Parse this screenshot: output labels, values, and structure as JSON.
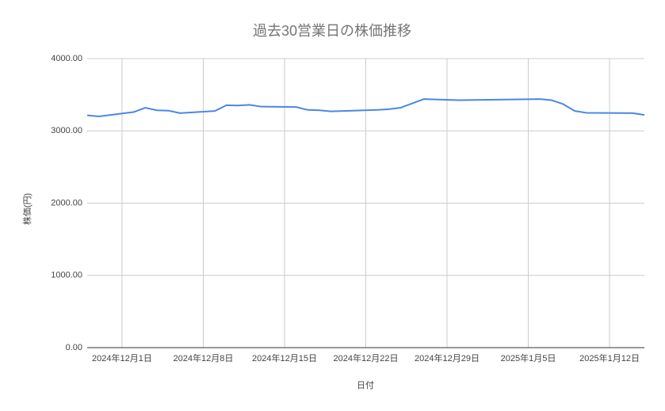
{
  "chart_data": {
    "type": "line",
    "title": "過去30営業日の株価推移",
    "x_label": "日付",
    "y_label": "株価(円)",
    "x": [
      "2024-11-28",
      "2024-11-29",
      "2024-12-02",
      "2024-12-03",
      "2024-12-04",
      "2024-12-05",
      "2024-12-06",
      "2024-12-09",
      "2024-12-10",
      "2024-12-11",
      "2024-12-12",
      "2024-12-13",
      "2024-12-16",
      "2024-12-17",
      "2024-12-18",
      "2024-12-19",
      "2024-12-23",
      "2024-12-24",
      "2024-12-25",
      "2024-12-27",
      "2024-12-30",
      "2025-01-06",
      "2025-01-07",
      "2025-01-08",
      "2025-01-09",
      "2025-01-10",
      "2025-01-14",
      "2025-01-15"
    ],
    "values": [
      3215,
      3200,
      3260,
      3320,
      3285,
      3280,
      3245,
      3275,
      3355,
      3350,
      3360,
      3335,
      3330,
      3290,
      3285,
      3270,
      3290,
      3300,
      3320,
      3440,
      3425,
      3440,
      3425,
      3370,
      3275,
      3250,
      3245,
      3220
    ],
    "color": "#4a86e8",
    "xlim": [
      "2024-11-28",
      "2025-01-15"
    ],
    "xticks": [
      {
        "value": "2024-12-01",
        "label": "2024年12月1日"
      },
      {
        "value": "2024-12-08",
        "label": "2024年12月8日"
      },
      {
        "value": "2024-12-15",
        "label": "2024年12月15日"
      },
      {
        "value": "2024-12-22",
        "label": "2024年12月22日"
      },
      {
        "value": "2024-12-29",
        "label": "2024年12月29日"
      },
      {
        "value": "2025-01-05",
        "label": "2025年1月5日"
      },
      {
        "value": "2025-01-12",
        "label": "2025年1月12日"
      }
    ],
    "ylim": [
      0,
      4000
    ],
    "yticks": [
      {
        "value": 0,
        "label": "0.00"
      },
      {
        "value": 1000,
        "label": "1000.00"
      },
      {
        "value": 2000,
        "label": "2000.00"
      },
      {
        "value": 3000,
        "label": "3000.00"
      },
      {
        "value": 4000,
        "label": "4000.00"
      }
    ],
    "grid": true
  }
}
